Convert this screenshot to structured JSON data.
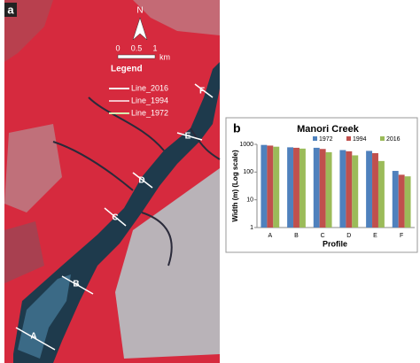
{
  "map": {
    "panel_label": "a",
    "north": "N",
    "scale_labels": [
      "0",
      "0.5",
      "1",
      "km"
    ],
    "legend_title": "Legend",
    "legend_items": [
      "Line_2016",
      "Line_1994",
      "Line_1972"
    ],
    "profiles": [
      "A",
      "B",
      "C",
      "D",
      "E",
      "F"
    ]
  },
  "chart_data": {
    "type": "bar",
    "panel_label": "b",
    "title": "Manori Creek",
    "x_label": "Profile",
    "y_label": "Width (m) (Log scale)",
    "categories": [
      "A",
      "B",
      "C",
      "D",
      "E",
      "F"
    ],
    "series": [
      {
        "name": "1972",
        "color": "#4f81bd",
        "values": [
          950,
          780,
          750,
          620,
          580,
          110
        ]
      },
      {
        "name": "1994",
        "color": "#c0504d",
        "values": [
          900,
          750,
          680,
          560,
          480,
          80
        ]
      },
      {
        "name": "2016",
        "color": "#9bbb59",
        "values": [
          820,
          700,
          520,
          400,
          250,
          70
        ]
      }
    ],
    "log_scale": true,
    "ylim": [
      1,
      1000
    ],
    "yticks": [
      1,
      10,
      100,
      1000
    ],
    "grid": false,
    "legend": "top"
  }
}
